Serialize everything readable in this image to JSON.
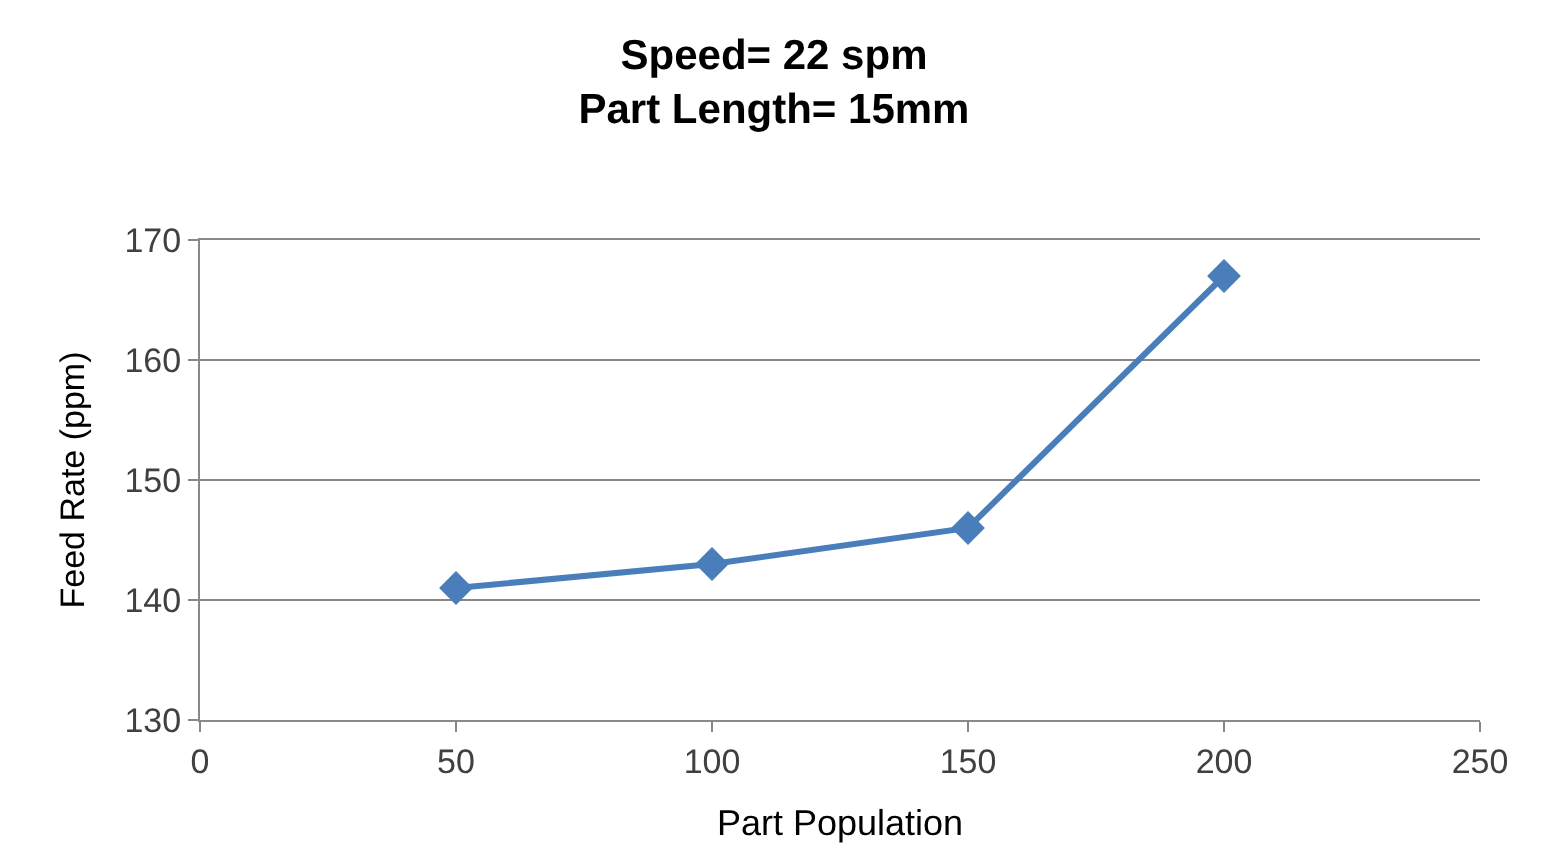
{
  "chart_data": {
    "type": "line",
    "title": "Speed= 22 spm\nPart Length= 15mm",
    "xlabel": "Part Population",
    "ylabel": "Feed Rate (ppm)",
    "x": [
      50,
      100,
      150,
      200
    ],
    "series": [
      {
        "color": "#4a7ebb",
        "values": [
          141,
          143,
          146,
          167
        ]
      }
    ],
    "xlim": [
      0,
      250
    ],
    "xticks": [
      0,
      50,
      100,
      150,
      200,
      250
    ],
    "ylim": [
      130,
      170
    ],
    "yticks": [
      130,
      140,
      150,
      160,
      170
    ],
    "grid": "y",
    "marker": "diamond",
    "line_style": "solid"
  }
}
